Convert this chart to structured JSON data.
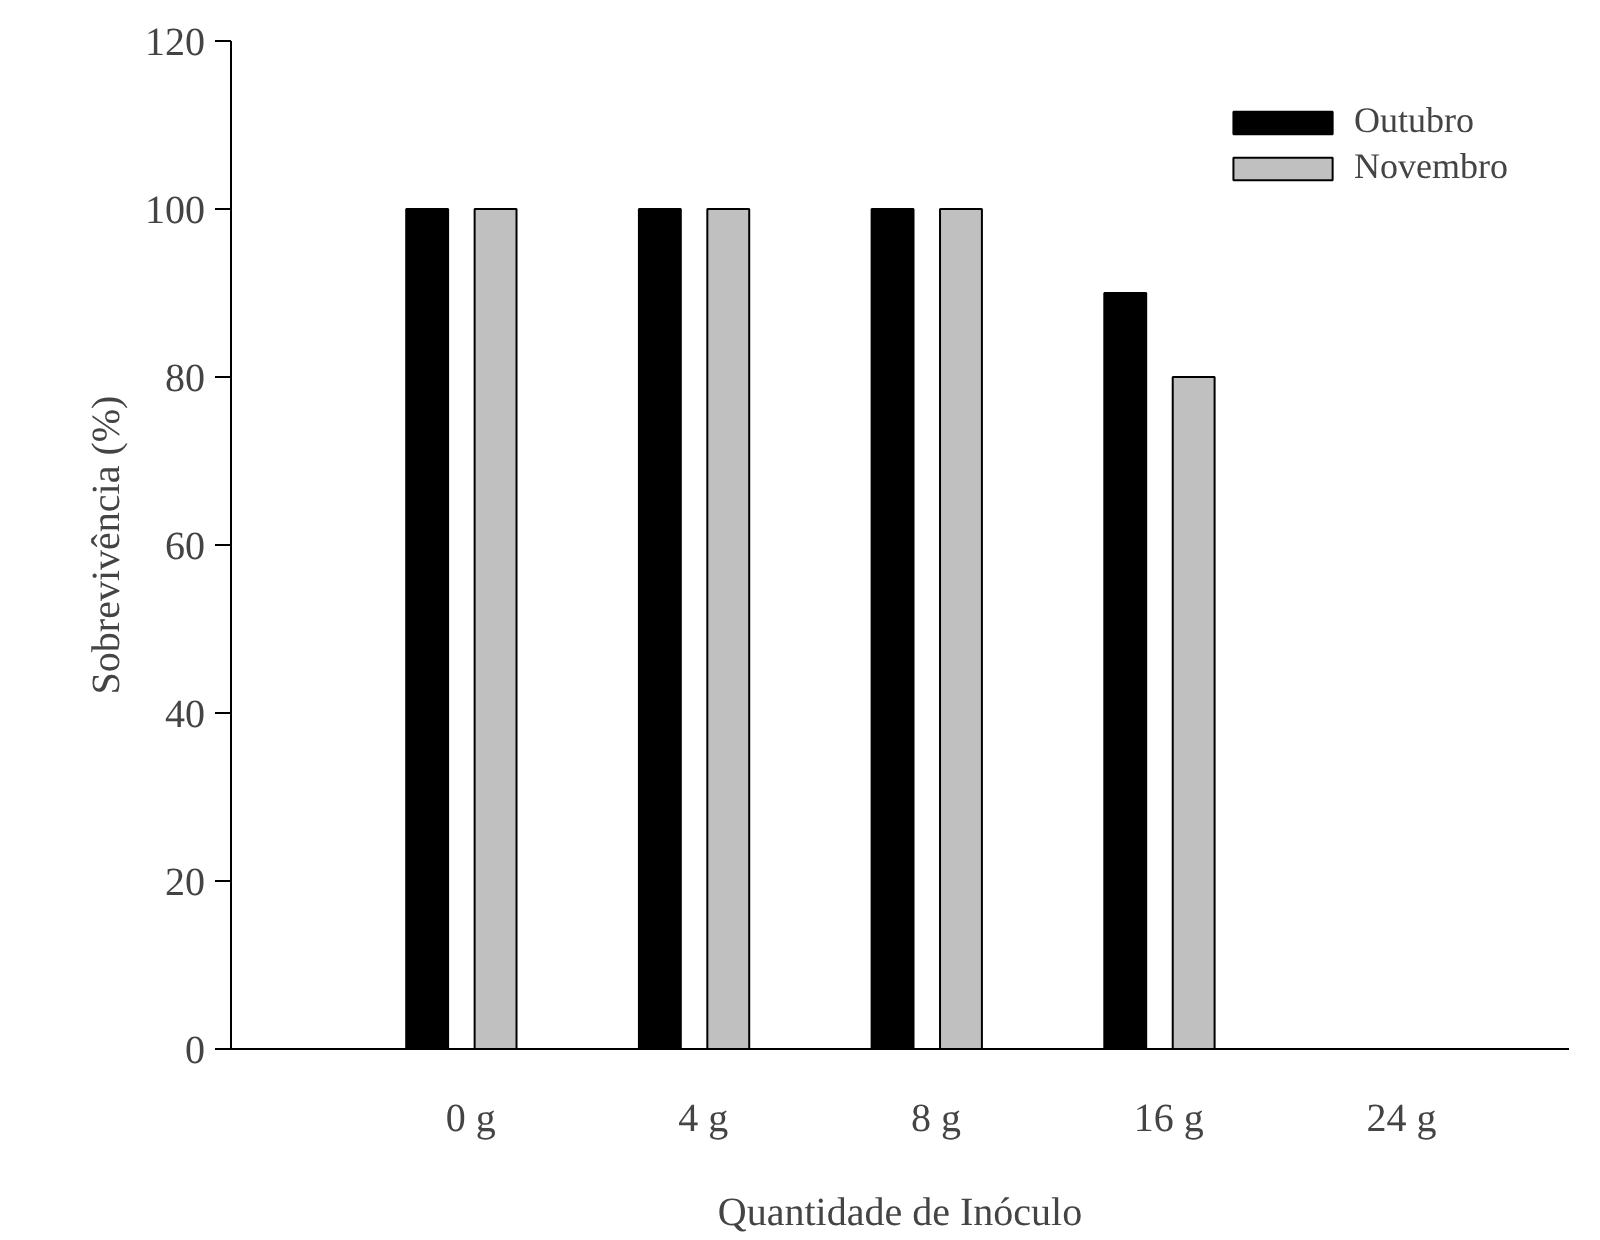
{
  "chart_data": {
    "type": "bar",
    "xlabel": "Quantidade de Inóculo",
    "ylabel": "Sobrevivência (%)",
    "categories": [
      "0 g",
      "4 g",
      "8 g",
      "16 g",
      "24 g"
    ],
    "series": [
      {
        "name": "Outubro",
        "color": "#000000",
        "values": [
          100,
          100,
          100,
          90,
          0
        ]
      },
      {
        "name": "Novembro",
        "color": "#c0c0c0",
        "values": [
          100,
          100,
          100,
          80,
          0
        ]
      }
    ],
    "ylim": [
      0,
      120
    ],
    "yticks": [
      0,
      20,
      40,
      60,
      80,
      100,
      120
    ],
    "grid": false,
    "legend": "top right"
  }
}
